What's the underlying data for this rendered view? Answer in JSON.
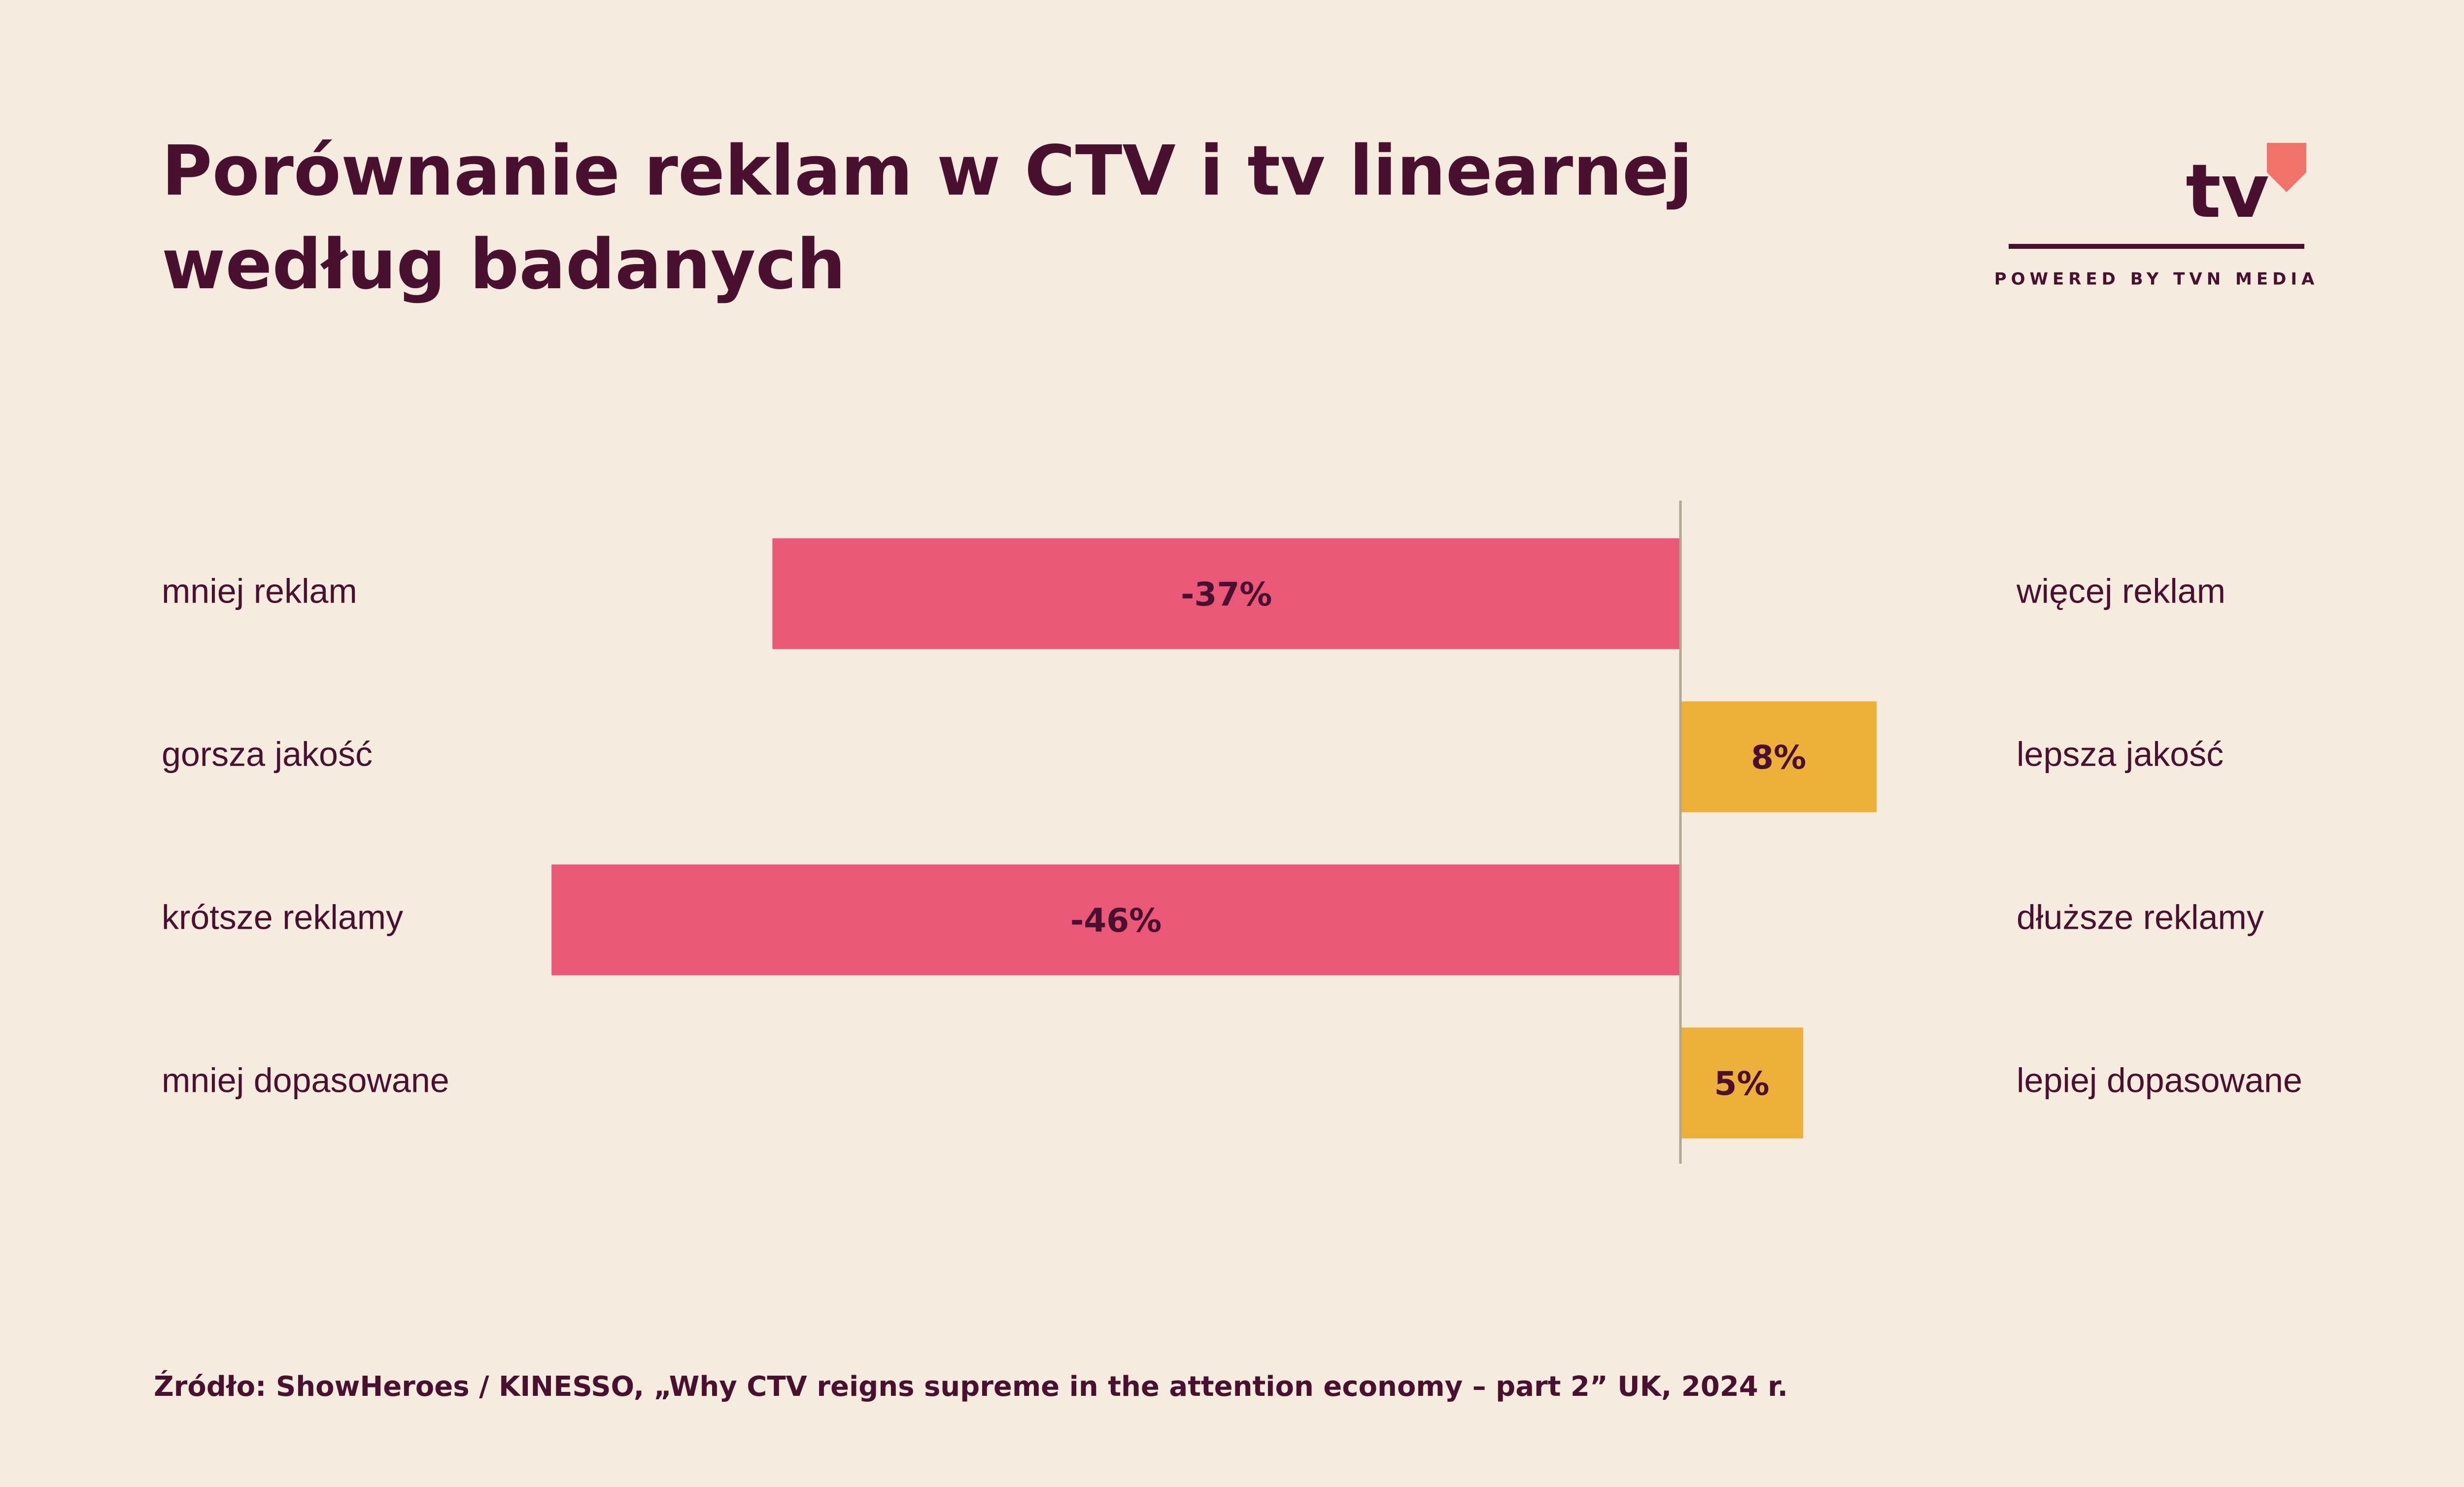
{
  "chart_data": {
    "type": "diverging-bar",
    "title": [
      "Porównanie reklam w CTV i tv linearnej",
      "według badanych"
    ],
    "categories": [
      "mniej reklam",
      "gorsza jakość",
      "krótsze reklamy",
      "mniej dopasowane"
    ],
    "right_categories": [
      "więcej reklam",
      "lepsza jakość",
      "dłuższe reklamy",
      "lepiej dopasowane"
    ],
    "values": [
      -37,
      8,
      -46,
      5
    ],
    "value_labels": [
      "-37%",
      "8%",
      "-46%",
      "5%"
    ],
    "colors": [
      "#e95876",
      "#ecaf3a",
      "#e95876",
      "#ecaf3a"
    ],
    "source": "Źródło: ShowHeroes / KINESSO, „Why CTV reigns supreme in the attention economy – part 2” UK, 2024 r."
  },
  "logo": {
    "text": "tv",
    "tagline": "POWERED BY TVN MEDIA"
  }
}
